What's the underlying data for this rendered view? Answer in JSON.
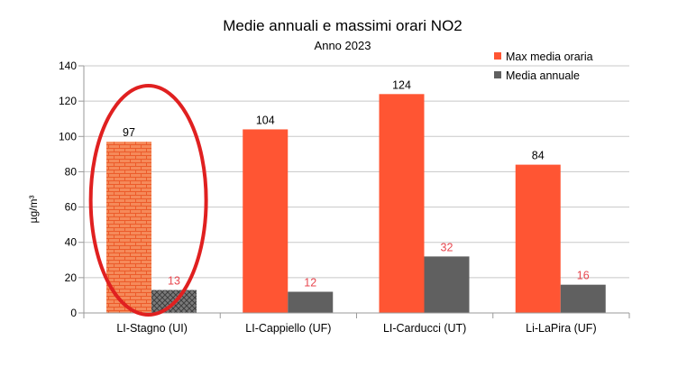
{
  "chart_data": {
    "type": "bar",
    "title": "Medie annuali e massimi orari  NO2",
    "subtitle": "Anno 2023",
    "ylabel": "µg/m³",
    "xlabel": "",
    "ylim": [
      0,
      140
    ],
    "yticks": [
      0,
      20,
      40,
      60,
      80,
      100,
      120,
      140
    ],
    "grid": true,
    "legend_position": "top-right",
    "categories": [
      "LI-Stagno (UI)",
      "LI-Cappiello (UF)",
      "LI-Carducci   (UT)",
      "Li-LaPira  (UF)"
    ],
    "series": [
      {
        "name": "Max media oraria",
        "values": [
          97,
          104,
          124,
          84
        ],
        "color": "#ff5533",
        "label_color": "#000000",
        "highlight_pattern_index": 0,
        "pattern_color": "#f06e3c"
      },
      {
        "name": "Media annuale",
        "values": [
          13,
          12,
          32,
          16
        ],
        "color": "#606060",
        "label_color": "#e8474f",
        "highlight_pattern_index": 0,
        "pattern_color": "#606060"
      }
    ],
    "annotation": {
      "type": "ellipse",
      "target_category": "LI-Stagno (UI)",
      "color": "#e02020"
    }
  }
}
